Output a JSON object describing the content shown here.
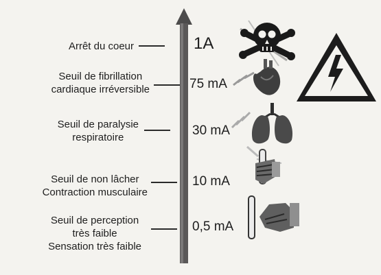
{
  "thresholds": [
    {
      "lines": [
        "Arrêt du coeur"
      ],
      "value": "1A",
      "icon": "skull-crossbones-icon"
    },
    {
      "lines": [
        "Seuil de fibrillation",
        "cardiaque irréversible"
      ],
      "value": "75 mA",
      "icon": "heart-icon"
    },
    {
      "lines": [
        "Seuil de paralysie",
        "respiratoire"
      ],
      "value": "30 mA",
      "icon": "lungs-icon"
    },
    {
      "lines": [
        "Seuil de non lâcher",
        "Contraction musculaire"
      ],
      "value": "10 mA",
      "icon": "hand-gripping-bar-icon"
    },
    {
      "lines": [
        "Seuil de perception",
        "très faible",
        "Sensation très faible"
      ],
      "value": "0,5 mA",
      "icon": "hand-touching-bar-icon"
    }
  ],
  "warning_sign": {
    "icon": "high-voltage-warning-icon",
    "color": "#1c1c1c"
  },
  "arrow": {
    "icon": "vertical-scale-arrow-icon",
    "color": "#4d4c4c"
  }
}
